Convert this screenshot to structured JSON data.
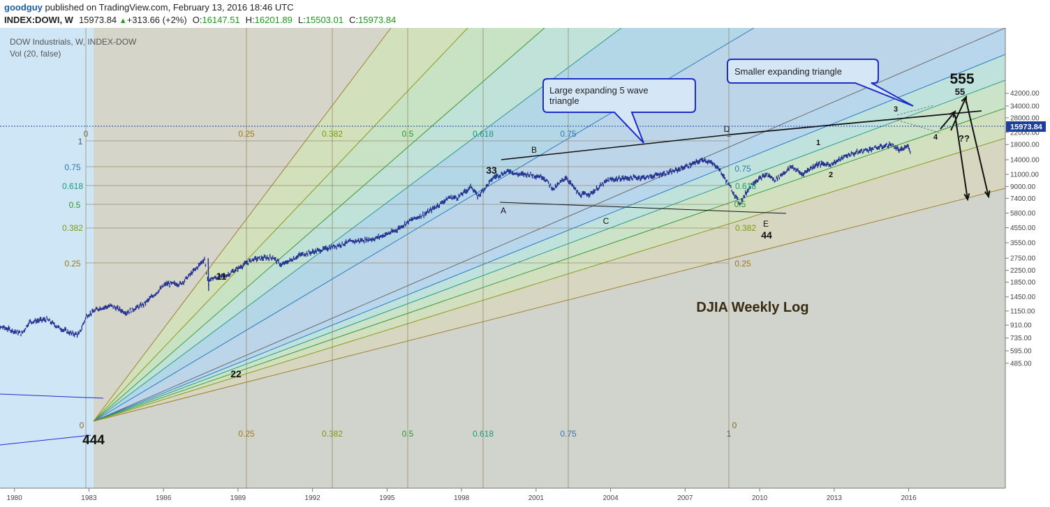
{
  "header": {
    "user": "goodguy",
    "published": "published on TradingView.com, February 13, 2016 18:46 UTC",
    "symbol": "INDEX:DOWI, W",
    "last": "15973.84",
    "change": "+313.66 (+2%)",
    "o_label": "O:",
    "o_value": "16147.51",
    "h_label": "H:",
    "h_value": "16201.89",
    "l_label": "L:",
    "l_value": "15503.01",
    "c_label": "C:",
    "c_value": "15973.84"
  },
  "legend": {
    "line1": "DOW Industrials, W, INDEX-DOW",
    "line2": "Vol (20, false)"
  },
  "price_label": "15973.84",
  "callouts": {
    "large": [
      "Large expanding 5 wave",
      "triangle"
    ],
    "small": "Smaller expanding triangle"
  },
  "chart_title": "DJIA Weekly Log",
  "colors": {
    "background": "#cfe6f7",
    "price_bars": "#1b2a8c",
    "price_tag": "#1c3f9e",
    "callout_border": "#1e2cc8"
  },
  "chart_data": {
    "type": "line",
    "scale": "log",
    "title": "DJIA Weekly Log",
    "x_ticks": [
      "1980",
      "1983",
      "1986",
      "1989",
      "1992",
      "1995",
      "1998",
      "2001",
      "2004",
      "2007",
      "2010",
      "2013",
      "2016"
    ],
    "y_ticks": [
      42000,
      34000,
      28000,
      22000,
      18000,
      14000,
      11000,
      9000,
      7400,
      5800,
      4550,
      3550,
      2750,
      2250,
      1850,
      1450,
      1150,
      910,
      735,
      595,
      485
    ],
    "ylim": [
      420,
      43000
    ],
    "xlim": [
      1978.75,
      2019.5
    ],
    "last_price": 15973.84,
    "series": [
      {
        "x": [
          1978.8,
          1979.5,
          1980.3,
          1980.6,
          1981.3,
          1981.8,
          1982.3,
          1982.6,
          1982.9,
          1983.4,
          1983.9,
          1984.5,
          1985.2,
          1986.1,
          1986.7,
          1987.3,
          1987.65,
          1987.82,
          1987.87,
          1988.5,
          1989.6,
          1990.4,
          1990.75,
          1991.5,
          1992.5,
          1993.5,
          1994.5,
          1995.3,
          1995.9,
          1996.6,
          1997.5,
          1997.85,
          1998.4,
          1998.65,
          1999.3,
          1999.95,
          2000.2,
          2000.7,
          2001.3,
          2001.7,
          2002.2,
          2002.75,
          2003.2,
          2003.9,
          2004.5,
          2005.5,
          2006.5,
          2007.3,
          2007.75,
          2008.3,
          2008.8,
          2009.2,
          2009.7,
          2010.3,
          2010.6,
          2011.3,
          2011.7,
          2012.3,
          2012.9,
          2013.5,
          2014.3,
          2014.7,
          2015.3,
          2015.65,
          2015.95,
          2016.1
        ],
        "y": [
          820,
          880,
          790,
          960,
          1000,
          870,
          790,
          780,
          1060,
          1200,
          1250,
          1120,
          1280,
          1800,
          1800,
          2300,
          2720,
          1750,
          1950,
          2050,
          2700,
          2800,
          2450,
          2900,
          3200,
          3600,
          3800,
          4300,
          5100,
          5800,
          7500,
          7500,
          9000,
          7600,
          10500,
          11700,
          11000,
          11000,
          10500,
          8600,
          10500,
          7800,
          8000,
          10000,
          10300,
          10500,
          11500,
          13000,
          14100,
          12500,
          9000,
          6800,
          9500,
          11000,
          10000,
          12500,
          11000,
          13000,
          13000,
          15000,
          16500,
          17000,
          18000,
          16200,
          17500,
          15973
        ]
      }
    ],
    "wave_labels": [
      "A",
      "B",
      "C",
      "D",
      "E",
      "1",
      "2",
      "3",
      "4",
      "11",
      "22",
      "33",
      "44",
      "444",
      "55",
      "555",
      "??"
    ],
    "fib_levels": [
      "0",
      "0.25",
      "0.382",
      "0.5",
      "0.618",
      "0.75",
      "1"
    ]
  }
}
